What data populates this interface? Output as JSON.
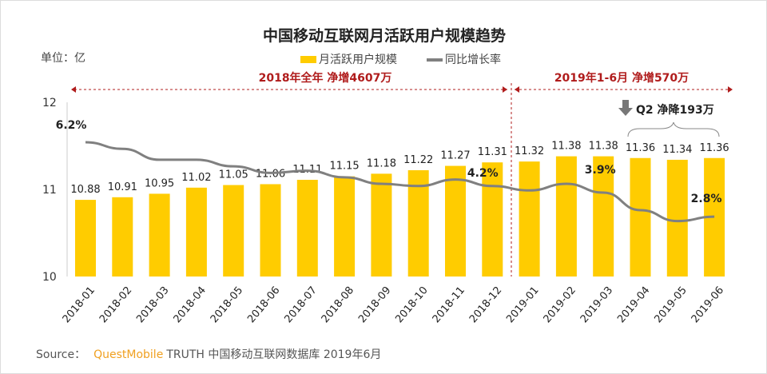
{
  "chart_data": {
    "type": "bar",
    "title": "中国移动互联网月活跃用户规模趋势",
    "unit_label": "单位：亿",
    "legend": [
      "月活跃用户规模",
      "同比增长率"
    ],
    "legend_position": "top",
    "categories": [
      "2018-01",
      "2018-02",
      "2018-03",
      "2018-04",
      "2018-05",
      "2018-06",
      "2018-07",
      "2018-08",
      "2018-09",
      "2018-10",
      "2018-11",
      "2018-12",
      "2019-01",
      "2019-02",
      "2019-03",
      "2019-04",
      "2019-05",
      "2019-06"
    ],
    "series": [
      {
        "name": "月活跃用户规模",
        "type": "bar",
        "values": [
          10.88,
          10.91,
          10.95,
          11.02,
          11.05,
          11.06,
          11.11,
          11.15,
          11.18,
          11.22,
          11.27,
          11.31,
          11.32,
          11.38,
          11.38,
          11.36,
          11.34,
          11.36
        ]
      },
      {
        "name": "同比增长率",
        "type": "line",
        "values": [
          6.2,
          5.9,
          5.4,
          5.4,
          5.1,
          4.8,
          4.9,
          4.6,
          4.3,
          4.2,
          4.5,
          4.2,
          4.0,
          4.3,
          3.9,
          3.1,
          2.6,
          2.8
        ]
      }
    ],
    "ylim": [
      10,
      12
    ],
    "yticks": [
      "10",
      "11",
      "12"
    ],
    "line_labels": [
      {
        "index": 0,
        "text": "6.2%"
      },
      {
        "index": 11,
        "text": "4.2%"
      },
      {
        "index": 14,
        "text": "3.9%"
      },
      {
        "index": 17,
        "text": "2.8%"
      }
    ],
    "annotations": {
      "period_2018": "2018年全年  净增4607万",
      "period_2019": "2019年1-6月  净增570万",
      "q2": "Q2 净降193万"
    }
  },
  "source": {
    "label": "Source：",
    "brand": "QuestMobile",
    "text": "TRUTH 中国移动互联网数据库 2019年6月"
  },
  "colors": {
    "bar": "#ffcc00",
    "line": "#808080",
    "annot": "#b01c1c"
  }
}
